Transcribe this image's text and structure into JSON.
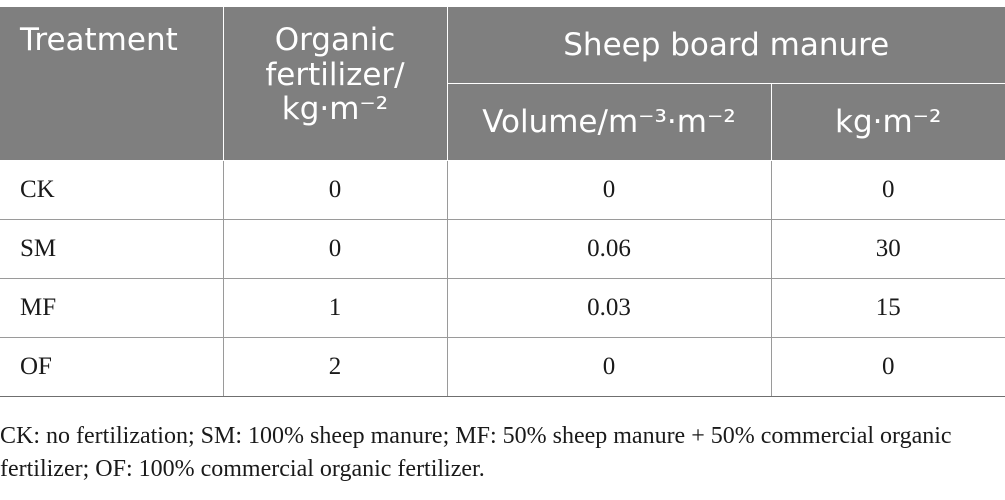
{
  "table": {
    "headers": {
      "treatment": "Treatment",
      "organic_fertilizer": "Organic fertilizer/ kg·m⁻²",
      "sheep_board_manure": "Sheep board manure",
      "volume": "Volume/m⁻³·m⁻²",
      "kg": "kg·m⁻²"
    },
    "rows": [
      {
        "treatment": "CK",
        "organic_fertilizer": "0",
        "volume": "0",
        "kg": "0"
      },
      {
        "treatment": "SM",
        "organic_fertilizer": "0",
        "volume": "0.06",
        "kg": "30"
      },
      {
        "treatment": "MF",
        "organic_fertilizer": "1",
        "volume": "0.03",
        "kg": "15"
      },
      {
        "treatment": "OF",
        "organic_fertilizer": "2",
        "volume": "0",
        "kg": "0"
      }
    ]
  },
  "footnote": "CK: no fertilization; SM: 100% sheep manure; MF: 50% sheep manure + 50% commercial organic fertilizer; OF: 100% commercial organic fertilizer.",
  "colors": {
    "header_background": "#7f7f7f",
    "header_text": "#ffffff",
    "body_text": "#1a1a1a",
    "rule": "#9a9a9a"
  }
}
